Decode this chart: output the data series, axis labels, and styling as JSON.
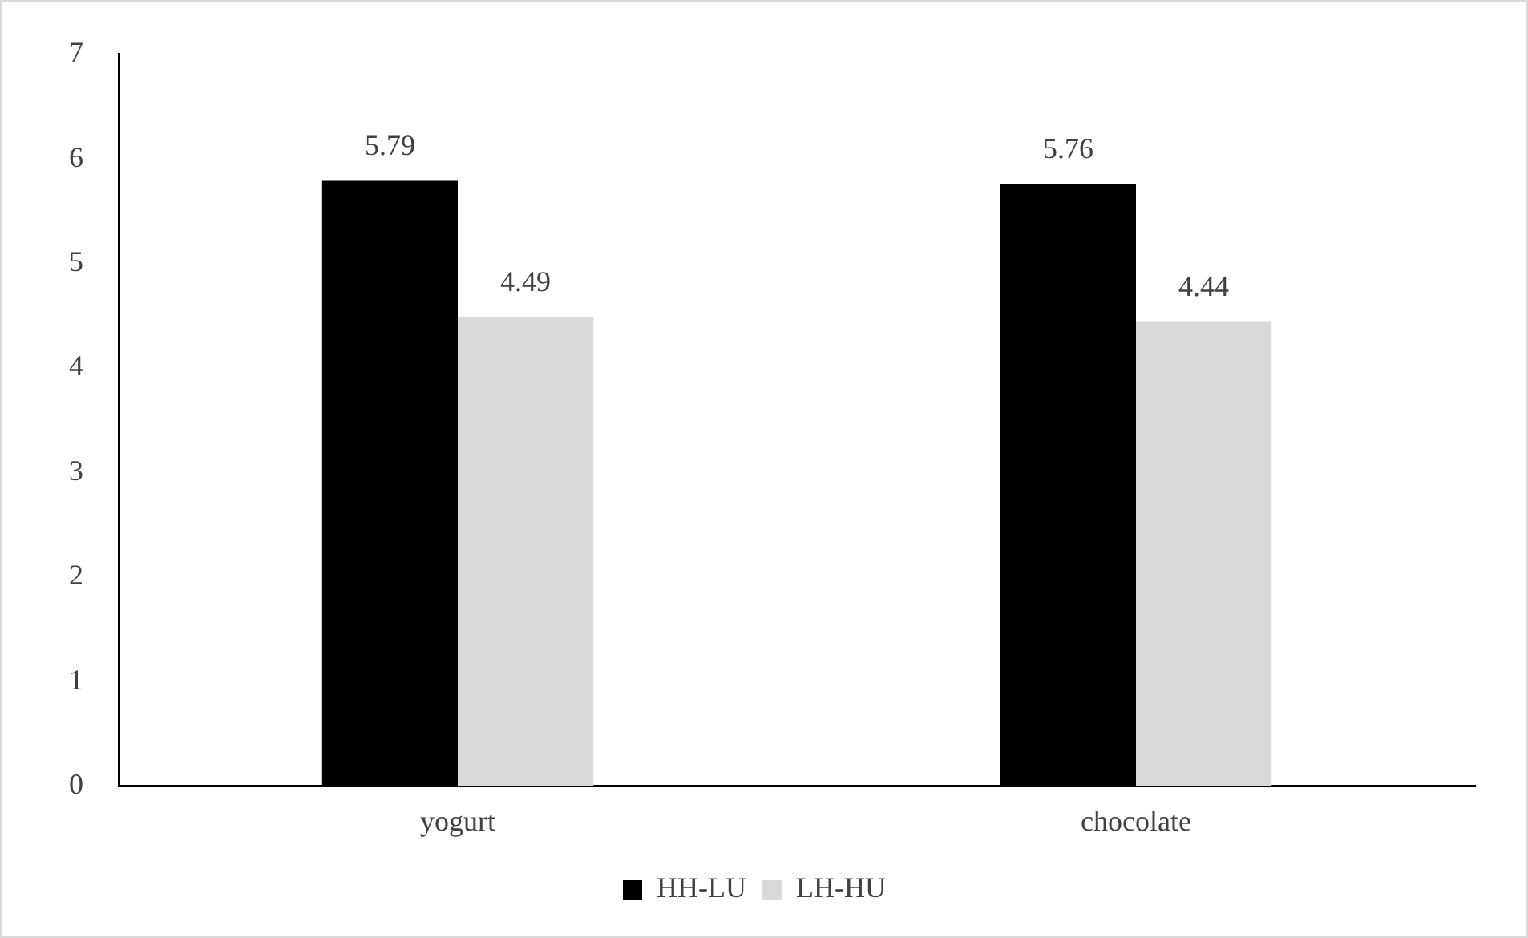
{
  "chart_data": {
    "type": "bar",
    "categories": [
      "yogurt",
      "chocolate"
    ],
    "series": [
      {
        "name": "HH-LU",
        "color": "#000000",
        "values": [
          5.79,
          5.76
        ]
      },
      {
        "name": "LH-HU",
        "color": "#d9d9d9",
        "values": [
          4.49,
          4.44
        ]
      }
    ],
    "ylim": [
      0,
      7
    ],
    "yticks": [
      0,
      1,
      2,
      3,
      4,
      5,
      6,
      7
    ],
    "grid": false,
    "legend": "bottom",
    "data_labels": true
  }
}
